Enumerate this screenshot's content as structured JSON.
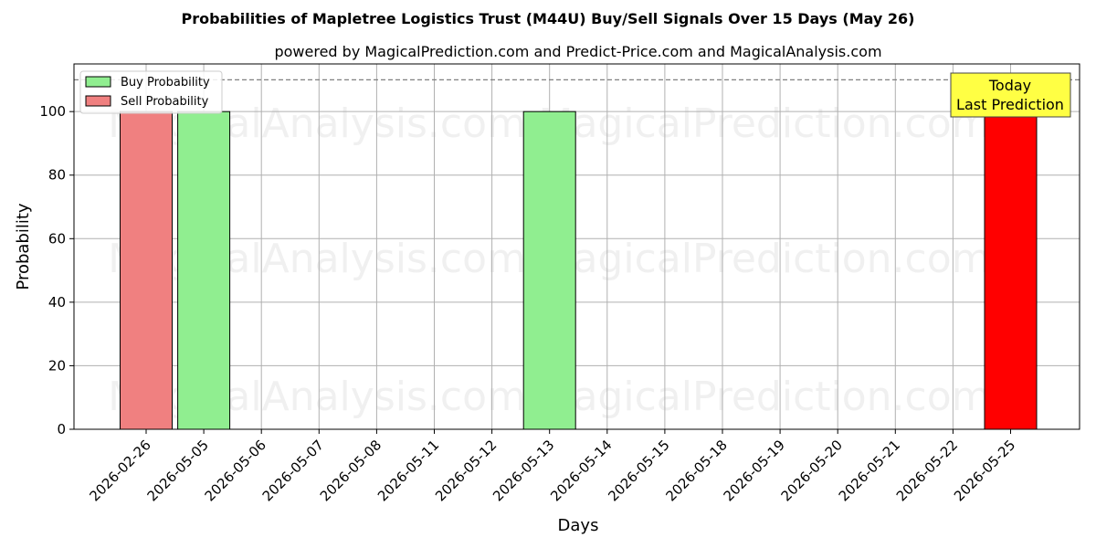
{
  "chart_data": {
    "type": "bar",
    "title": "Probabilities of Mapletree Logistics Trust (M44U) Buy/Sell Signals Over 15 Days (May 26)",
    "subtitle": "powered by MagicalPrediction.com and Predict-Price.com and MagicalAnalysis.com",
    "xlabel": "Days",
    "ylabel": "Probability",
    "ylim": [
      0,
      115
    ],
    "yticks": [
      0,
      20,
      40,
      60,
      80,
      100
    ],
    "categories": [
      "2026-02-26",
      "2026-05-05",
      "2026-05-06",
      "2026-05-07",
      "2026-05-08",
      "2026-05-11",
      "2026-05-12",
      "2026-05-13",
      "2026-05-14",
      "2026-05-15",
      "2026-05-18",
      "2026-05-19",
      "2026-05-20",
      "2026-05-21",
      "2026-05-22",
      "2026-05-25"
    ],
    "bars": [
      {
        "category_index": 0,
        "offset": 0,
        "value": 100,
        "series": "Sell Probability"
      },
      {
        "category_index": 0,
        "offset": 1,
        "value": 100,
        "series": "Buy Probability"
      },
      {
        "category_index": 7,
        "offset": 0,
        "value": 100,
        "series": "Buy Probability"
      },
      {
        "category_index": 15,
        "offset": 0,
        "value": 100,
        "series": "Today Sell"
      }
    ],
    "series": [
      {
        "name": "Buy Probability",
        "color": "#90ee90"
      },
      {
        "name": "Sell Probability",
        "color": "#f08080"
      }
    ],
    "today_bar_color": "#ff0000",
    "reference_line": {
      "value": 110,
      "style": "dashed",
      "color": "#808080"
    },
    "annotation": {
      "line1": "Today",
      "line2": "Last Prediction",
      "background": "#ffff44"
    },
    "legend_position": "top-left",
    "grid": true,
    "watermarks": [
      "MagicalAnalysis.com",
      "MagicalPrediction.com"
    ]
  }
}
